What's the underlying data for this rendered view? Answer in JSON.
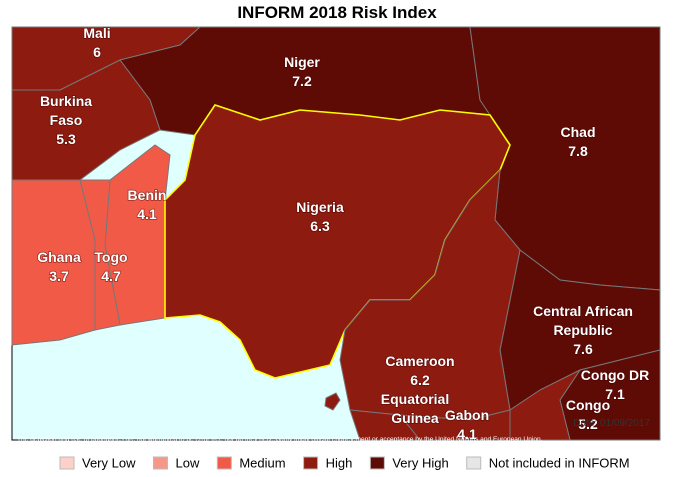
{
  "title": "INFORM 2018 Risk Index",
  "countries": [
    {
      "name_lines": [
        "Mali"
      ],
      "score": 6,
      "color": "#8e1b10"
    },
    {
      "name_lines": [
        "Niger"
      ],
      "score": 7.2,
      "color": "#5e0b06"
    },
    {
      "name_lines": [
        "Burkina",
        "Faso"
      ],
      "score": 5.3,
      "color": "#8e1b10"
    },
    {
      "name_lines": [
        "Chad"
      ],
      "score": 7.8,
      "color": "#5e0b06"
    },
    {
      "name_lines": [
        "Benin"
      ],
      "score": 4.1,
      "color": "#f25a48"
    },
    {
      "name_lines": [
        "Nigeria"
      ],
      "score": 6.3,
      "color": "#8e1b10"
    },
    {
      "name_lines": [
        "Ghana"
      ],
      "score": 3.7,
      "color": "#f25a48"
    },
    {
      "name_lines": [
        "Togo"
      ],
      "score": 4.7,
      "color": "#f25a48"
    },
    {
      "name_lines": [
        "Central African",
        "Republic"
      ],
      "score": 7.6,
      "color": "#5e0b06"
    },
    {
      "name_lines": [
        "Cameroon"
      ],
      "score": 6.2,
      "color": "#8e1b10"
    },
    {
      "name_lines": [
        "Congo DR"
      ],
      "score": 7.1,
      "color": "#5e0b06"
    },
    {
      "name_lines": [
        "Equatorial",
        "Guinea"
      ],
      "color": "#8e1b10"
    },
    {
      "name_lines": [
        "Gabon"
      ],
      "score": 4.1,
      "color": "#8e1b10"
    },
    {
      "name_lines": [
        "Congo"
      ],
      "score": 5.2,
      "color": "#8e1b10"
    }
  ],
  "date": "Date: 01/09/2017",
  "disclaimer": "The depiction and use of boundaries are not warranted to be error free nor do they necessarily imply official endorsement or acceptance by the United Nations and European Union.",
  "legend": [
    {
      "label": "Very Low",
      "color": "#fdd0c8"
    },
    {
      "label": "Low",
      "color": "#f4998a"
    },
    {
      "label": "Medium",
      "color": "#f25a48"
    },
    {
      "label": "High",
      "color": "#8e1b10"
    },
    {
      "label": "Very High",
      "color": "#5e0b06"
    },
    {
      "label": "Not included in INFORM",
      "color": "#e6e6e6"
    }
  ]
}
